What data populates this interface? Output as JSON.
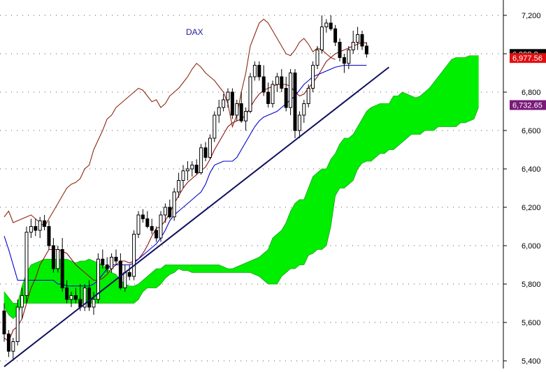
{
  "chart_data": {
    "type": "candlestick",
    "title": "DAX",
    "ylim": [
      5360,
      7280
    ],
    "y_ticks": [
      7200,
      7000,
      6800,
      6600,
      6400,
      6200,
      6000,
      5800,
      5600,
      5400
    ],
    "y_tick_labels": [
      "7,200",
      "7,000",
      "6,800",
      "6,600",
      "6,400",
      "6,200",
      "6,000",
      "5,800",
      "5,600",
      "5,400"
    ],
    "grid": true,
    "grid_style": "dotted",
    "price_tags": [
      {
        "label": "6,998.8",
        "value": 6998.8,
        "color": "#000000"
      },
      {
        "label": "6,977.56",
        "value": 6977.56,
        "color": "#e01010"
      },
      {
        "label": "6,732.65",
        "value": 6732.65,
        "color": "#7a1a7a"
      }
    ],
    "candles": [
      [
        5660,
        5700,
        5500,
        5540
      ],
      [
        5540,
        5560,
        5420,
        5450
      ],
      [
        5450,
        5520,
        5400,
        5500
      ],
      [
        5500,
        5720,
        5480,
        5680
      ],
      [
        5680,
        5780,
        5620,
        5740
      ],
      [
        5740,
        6100,
        5700,
        6070
      ],
      [
        6070,
        6140,
        6040,
        6100
      ],
      [
        6100,
        6140,
        6050,
        6080
      ],
      [
        6080,
        6150,
        6040,
        6130
      ],
      [
        6130,
        6160,
        6080,
        6100
      ],
      [
        6100,
        6130,
        5980,
        6000
      ],
      [
        6000,
        6040,
        5860,
        5880
      ],
      [
        5880,
        6000,
        5860,
        5980
      ],
      [
        5980,
        6040,
        5760,
        5780
      ],
      [
        5780,
        5820,
        5700,
        5720
      ],
      [
        5720,
        5760,
        5680,
        5740
      ],
      [
        5740,
        5780,
        5700,
        5720
      ],
      [
        5720,
        5800,
        5660,
        5680
      ],
      [
        5680,
        5800,
        5660,
        5780
      ],
      [
        5780,
        5820,
        5660,
        5680
      ],
      [
        5680,
        5760,
        5640,
        5720
      ],
      [
        5720,
        5960,
        5700,
        5930
      ],
      [
        5930,
        5980,
        5880,
        5900
      ],
      [
        5900,
        5940,
        5860,
        5880
      ],
      [
        5880,
        5960,
        5860,
        5940
      ],
      [
        5940,
        5980,
        5900,
        5920
      ],
      [
        5920,
        5960,
        5770,
        5780
      ],
      [
        5780,
        5900,
        5760,
        5860
      ],
      [
        5860,
        5900,
        5820,
        5840
      ],
      [
        5840,
        6080,
        5820,
        6060
      ],
      [
        6060,
        6180,
        6040,
        6160
      ],
      [
        6160,
        6190,
        6120,
        6140
      ],
      [
        6140,
        6180,
        6090,
        6100
      ],
      [
        6100,
        6140,
        6060,
        6080
      ],
      [
        6080,
        6100,
        6020,
        6040
      ],
      [
        6040,
        6180,
        6020,
        6160
      ],
      [
        6160,
        6220,
        6120,
        6200
      ],
      [
        6200,
        6240,
        6140,
        6150
      ],
      [
        6150,
        6300,
        6130,
        6280
      ],
      [
        6280,
        6380,
        6250,
        6340
      ],
      [
        6340,
        6420,
        6300,
        6390
      ],
      [
        6390,
        6440,
        6340,
        6400
      ],
      [
        6400,
        6440,
        6360,
        6420
      ],
      [
        6420,
        6450,
        6370,
        6380
      ],
      [
        6380,
        6530,
        6370,
        6510
      ],
      [
        6510,
        6540,
        6440,
        6460
      ],
      [
        6460,
        6580,
        6450,
        6560
      ],
      [
        6560,
        6700,
        6540,
        6680
      ],
      [
        6680,
        6760,
        6640,
        6720
      ],
      [
        6720,
        6790,
        6700,
        6760
      ],
      [
        6760,
        6820,
        6720,
        6800
      ],
      [
        6800,
        6820,
        6660,
        6680
      ],
      [
        6680,
        6760,
        6650,
        6740
      ],
      [
        6740,
        6800,
        6640,
        6650
      ],
      [
        6650,
        6720,
        6600,
        6700
      ],
      [
        6700,
        6900,
        6690,
        6880
      ],
      [
        6880,
        6960,
        6860,
        6940
      ],
      [
        6940,
        6960,
        6860,
        6880
      ],
      [
        6880,
        6940,
        6780,
        6800
      ],
      [
        6800,
        6850,
        6720,
        6740
      ],
      [
        6740,
        6860,
        6720,
        6840
      ],
      [
        6840,
        6900,
        6800,
        6880
      ],
      [
        6880,
        6920,
        6800,
        6820
      ],
      [
        6820,
        6880,
        6700,
        6720
      ],
      [
        6720,
        6920,
        6680,
        6900
      ],
      [
        6900,
        6920,
        6560,
        6600
      ],
      [
        6600,
        6700,
        6560,
        6680
      ],
      [
        6680,
        6760,
        6640,
        6740
      ],
      [
        6740,
        6840,
        6720,
        6820
      ],
      [
        6820,
        6960,
        6800,
        6940
      ],
      [
        6940,
        7040,
        6920,
        7020
      ],
      [
        7020,
        7200,
        7000,
        7140
      ],
      [
        7140,
        7180,
        7110,
        7160
      ],
      [
        7160,
        7200,
        7120,
        7130
      ],
      [
        7130,
        7150,
        7040,
        7060
      ],
      [
        7060,
        7080,
        6960,
        6980
      ],
      [
        6980,
        7000,
        6900,
        6950
      ],
      [
        6950,
        7040,
        6920,
        7020
      ],
      [
        7020,
        7120,
        7000,
        7060
      ],
      [
        7060,
        7140,
        7020,
        7100
      ],
      [
        7100,
        7120,
        7020,
        7040
      ],
      [
        7040,
        7060,
        6980,
        6999
      ]
    ],
    "series": [
      {
        "style": "tenkan",
        "color": "#8b1010",
        "values": [
          5520,
          5500,
          5560,
          5580,
          5620,
          5700,
          5780,
          5830,
          5900,
          5940,
          5980,
          5980,
          5980,
          5970,
          5960,
          5930,
          5900,
          5880,
          5860,
          5840,
          5820,
          5820,
          5830,
          5850,
          5880,
          5900,
          5920,
          5920,
          5910,
          5920,
          5930,
          5960,
          6000,
          6050,
          6090,
          6100,
          6130,
          6170,
          6220,
          6260,
          6300,
          6330,
          6350,
          6370,
          6390,
          6410,
          6450,
          6500,
          6540,
          6580,
          6620,
          6640,
          6650,
          6660,
          6680,
          6720,
          6760,
          6790,
          6810,
          6820,
          6830,
          6840,
          6840,
          6840,
          6830,
          6800,
          6780,
          6790,
          6820,
          6850,
          6880,
          6920,
          6960,
          6980,
          7000,
          7010,
          7020,
          7030,
          7040,
          7050,
          7060,
          7055
        ]
      },
      {
        "style": "kijun",
        "color": "#0000cc",
        "values": [
          6050,
          5980,
          5900,
          5820,
          5820,
          5820,
          5820,
          5820,
          5820,
          5820,
          5820,
          5820,
          5800,
          5800,
          5790,
          5790,
          5790,
          5790,
          5790,
          5790,
          5800,
          5820,
          5850,
          5880,
          5900,
          5900,
          5900,
          5900,
          5900,
          5910,
          5930,
          5950,
          5970,
          5990,
          6010,
          6040,
          6080,
          6130,
          6160,
          6180,
          6200,
          6220,
          6240,
          6260,
          6280,
          6320,
          6380,
          6420,
          6430,
          6440,
          6440,
          6440,
          6460,
          6500,
          6540,
          6580,
          6620,
          6650,
          6670,
          6680,
          6690,
          6700,
          6720,
          6740,
          6760,
          6780,
          6810,
          6840,
          6860,
          6880,
          6890,
          6900,
          6910,
          6920,
          6930,
          6935,
          6940,
          6940,
          6940,
          6940,
          6940,
          6940
        ]
      },
      {
        "style": "chikou",
        "color": "#8b2a10",
        "values": [
          6150,
          6180,
          6120,
          6130,
          6140,
          6150,
          6160,
          6140,
          6120,
          6100,
          6140,
          6180,
          6220,
          6260,
          6300,
          6320,
          6330,
          6350,
          6400,
          6420,
          6500,
          6550,
          6600,
          6660,
          6680,
          6720,
          6740,
          6760,
          6780,
          6800,
          6820,
          6810,
          6780,
          6750,
          6760,
          6720,
          6740,
          6780,
          6800,
          6820,
          6850,
          6880,
          6920,
          6950,
          6930,
          6900,
          6880,
          6860,
          6830,
          6800,
          6740,
          6620,
          6680,
          6800,
          6900,
          7040,
          7100,
          7160,
          7180,
          7160,
          7120,
          7080,
          7040,
          7000,
          6990,
          7020,
          7060,
          7080,
          7050,
          7010,
          7030,
          7020,
          7000,
          6980,
          6970
        ]
      }
    ],
    "cloud": {
      "span_a": [
        5760,
        5730,
        5700,
        5700,
        5790,
        5860,
        5900,
        5910,
        5920,
        5930,
        5930,
        5930,
        5930,
        5930,
        5930,
        5920,
        5910,
        5920,
        5920,
        5930,
        5920,
        5910,
        5900,
        5880,
        5860,
        5850,
        5820,
        5800,
        5790,
        5790,
        5800,
        5820,
        5840,
        5860,
        5880,
        5880,
        5900,
        5900,
        5900,
        5900,
        5900,
        5900,
        5900,
        5900,
        5900,
        5900,
        5900,
        5900,
        5900,
        5890,
        5880,
        5880,
        5890,
        5900,
        5910,
        5920,
        5930,
        5940,
        5960,
        5980,
        6040,
        6060,
        6080,
        6120,
        6180,
        6220,
        6240,
        6240,
        6300,
        6360,
        6380,
        6400,
        6400,
        6450,
        6480,
        6530,
        6560,
        6560,
        6580,
        6620,
        6660,
        6700,
        6720,
        6730,
        6740,
        6740,
        6740,
        6780,
        6780,
        6800,
        6790,
        6780,
        6770,
        6780,
        6800,
        6820,
        6850,
        6880,
        6910,
        6940,
        6970,
        6980,
        6980,
        6980,
        6990,
        6990,
        6990
      ],
      "span_b": [
        5680,
        5640,
        5620,
        5640,
        5700,
        5700,
        5700,
        5700,
        5700,
        5700,
        5700,
        5700,
        5700,
        5700,
        5700,
        5700,
        5700,
        5700,
        5700,
        5700,
        5700,
        5700,
        5700,
        5700,
        5700,
        5700,
        5700,
        5700,
        5700,
        5700,
        5720,
        5760,
        5780,
        5780,
        5780,
        5800,
        5830,
        5850,
        5860,
        5880,
        5870,
        5870,
        5860,
        5860,
        5860,
        5860,
        5860,
        5860,
        5860,
        5860,
        5860,
        5860,
        5860,
        5860,
        5860,
        5860,
        5850,
        5840,
        5820,
        5800,
        5800,
        5800,
        5840,
        5860,
        5880,
        5880,
        5900,
        5900,
        5950,
        5960,
        5980,
        5980,
        6000,
        6100,
        6260,
        6300,
        6300,
        6320,
        6340,
        6400,
        6430,
        6440,
        6440,
        6460,
        6480,
        6480,
        6500,
        6500,
        6520,
        6540,
        6560,
        6580,
        6580,
        6580,
        6600,
        6600,
        6600,
        6620,
        6620,
        6620,
        6620,
        6620,
        6640,
        6640,
        6650,
        6660,
        6720
      ]
    },
    "trendline": {
      "start": [
        0,
        5370
      ],
      "end": [
        86,
        6930
      ],
      "color": "#101060"
    }
  }
}
